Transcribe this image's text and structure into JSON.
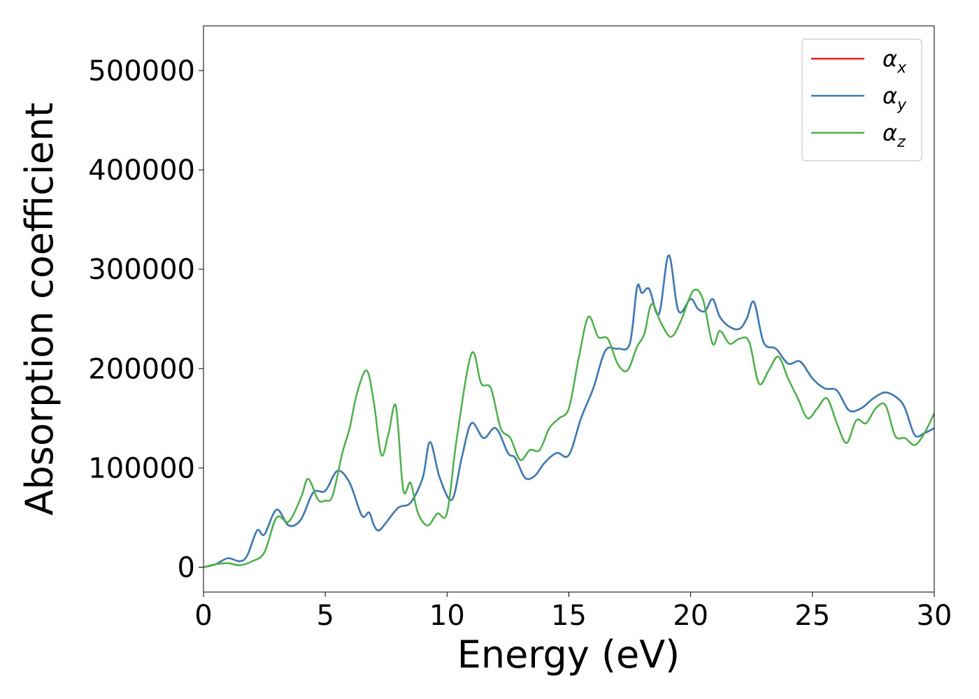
{
  "chart_data": {
    "type": "line",
    "xlabel": "Energy (eV)",
    "ylabel": "Absorption coefficient",
    "xlim": [
      0,
      30
    ],
    "ylim": [
      -25000,
      545000
    ],
    "x_ticks": [
      0,
      5,
      10,
      15,
      20,
      25,
      30
    ],
    "y_ticks": [
      0,
      100000,
      200000,
      300000,
      400000,
      500000
    ],
    "legend_position": "top-right",
    "series": [
      {
        "name": "α_x",
        "label_base": "α",
        "label_sub": "x",
        "color": "#e41a1c",
        "x": [
          0,
          0.5,
          1.0,
          1.5,
          1.8,
          2.2,
          2.5,
          3.0,
          3.5,
          4.0,
          4.5,
          5.0,
          5.5,
          6.0,
          6.5,
          6.8,
          7.0,
          7.2,
          7.5,
          8.0,
          8.5,
          9.0,
          9.3,
          9.7,
          10.2,
          10.6,
          11.0,
          11.5,
          12.0,
          12.5,
          12.8,
          13.2,
          13.6,
          14.0,
          14.5,
          15.0,
          15.5,
          16.0,
          16.5,
          17.0,
          17.5,
          17.8,
          18.0,
          18.3,
          18.7,
          19.1,
          19.5,
          20.0,
          20.3,
          20.6,
          20.9,
          21.2,
          21.6,
          22.0,
          22.3,
          22.6,
          23.0,
          23.5,
          24.0,
          24.5,
          25.0,
          25.5,
          26.0,
          26.5,
          27.0,
          27.5,
          28.0,
          28.5,
          28.8,
          29.2,
          29.6,
          30.0
        ],
        "values": [
          0,
          3000,
          9000,
          6000,
          12000,
          37000,
          33000,
          58000,
          42000,
          48000,
          75000,
          77000,
          97000,
          85000,
          52000,
          55000,
          42000,
          37000,
          45000,
          60000,
          65000,
          90000,
          126000,
          90000,
          68000,
          110000,
          145000,
          130000,
          140000,
          115000,
          110000,
          90000,
          92000,
          105000,
          115000,
          113000,
          150000,
          180000,
          218000,
          220000,
          225000,
          282000,
          276000,
          280000,
          255000,
          314000,
          258000,
          270000,
          260000,
          258000,
          270000,
          252000,
          242000,
          240000,
          250000,
          267000,
          226000,
          220000,
          205000,
          207000,
          190000,
          180000,
          178000,
          158000,
          160000,
          170000,
          176000,
          170000,
          160000,
          133000,
          135000,
          140000
        ]
      },
      {
        "name": "α_y",
        "label_base": "α",
        "label_sub": "y",
        "color": "#377eb8",
        "x": [
          0,
          0.5,
          1.0,
          1.5,
          1.8,
          2.2,
          2.5,
          3.0,
          3.5,
          4.0,
          4.5,
          5.0,
          5.5,
          6.0,
          6.5,
          6.8,
          7.0,
          7.2,
          7.5,
          8.0,
          8.5,
          9.0,
          9.3,
          9.7,
          10.2,
          10.6,
          11.0,
          11.5,
          12.0,
          12.5,
          12.8,
          13.2,
          13.6,
          14.0,
          14.5,
          15.0,
          15.5,
          16.0,
          16.5,
          17.0,
          17.5,
          17.8,
          18.0,
          18.3,
          18.7,
          19.1,
          19.5,
          20.0,
          20.3,
          20.6,
          20.9,
          21.2,
          21.6,
          22.0,
          22.3,
          22.6,
          23.0,
          23.5,
          24.0,
          24.5,
          25.0,
          25.5,
          26.0,
          26.5,
          27.0,
          27.5,
          28.0,
          28.5,
          28.8,
          29.2,
          29.6,
          30.0
        ],
        "values": [
          0,
          3000,
          9000,
          6000,
          12000,
          37000,
          33000,
          58000,
          42000,
          48000,
          75000,
          77000,
          97000,
          85000,
          52000,
          55000,
          42000,
          37000,
          45000,
          60000,
          65000,
          90000,
          126000,
          90000,
          68000,
          110000,
          145000,
          130000,
          140000,
          115000,
          110000,
          90000,
          92000,
          105000,
          115000,
          113000,
          150000,
          180000,
          218000,
          220000,
          225000,
          282000,
          276000,
          280000,
          255000,
          314000,
          258000,
          270000,
          260000,
          258000,
          270000,
          252000,
          242000,
          240000,
          250000,
          267000,
          226000,
          220000,
          205000,
          207000,
          190000,
          180000,
          178000,
          158000,
          160000,
          170000,
          176000,
          170000,
          160000,
          133000,
          135000,
          140000
        ]
      },
      {
        "name": "α_z",
        "label_base": "α",
        "label_sub": "z",
        "color": "#4daf4a",
        "x": [
          0,
          0.5,
          1.0,
          1.5,
          2.0,
          2.5,
          3.0,
          3.5,
          4.0,
          4.3,
          4.7,
          5.0,
          5.3,
          5.7,
          6.0,
          6.3,
          6.7,
          7.0,
          7.3,
          7.6,
          7.9,
          8.2,
          8.5,
          8.8,
          9.2,
          9.6,
          10.0,
          10.4,
          11.0,
          11.4,
          11.8,
          12.2,
          12.6,
          13.0,
          13.4,
          13.8,
          14.2,
          14.6,
          15.0,
          15.4,
          15.8,
          16.2,
          16.6,
          17.0,
          17.4,
          17.8,
          18.1,
          18.4,
          18.8,
          19.2,
          19.6,
          20.1,
          20.5,
          20.9,
          21.2,
          21.6,
          22.0,
          22.4,
          22.8,
          23.2,
          23.6,
          24.0,
          24.4,
          24.8,
          25.2,
          25.6,
          26.0,
          26.4,
          26.8,
          27.2,
          27.6,
          28.0,
          28.4,
          28.8,
          29.2,
          29.6,
          30.0
        ],
        "values": [
          0,
          3000,
          4000,
          2000,
          6000,
          15000,
          50000,
          46000,
          70000,
          89000,
          68000,
          67000,
          72000,
          115000,
          140000,
          175000,
          198000,
          165000,
          113000,
          135000,
          162000,
          78000,
          85000,
          55000,
          42000,
          54000,
          55000,
          130000,
          215000,
          185000,
          180000,
          140000,
          130000,
          108000,
          118000,
          118000,
          140000,
          150000,
          160000,
          210000,
          252000,
          232000,
          230000,
          205000,
          198000,
          222000,
          235000,
          265000,
          245000,
          232000,
          248000,
          278000,
          270000,
          225000,
          238000,
          225000,
          230000,
          227000,
          185000,
          198000,
          212000,
          190000,
          170000,
          150000,
          160000,
          170000,
          145000,
          125000,
          148000,
          145000,
          160000,
          163000,
          132000,
          130000,
          123000,
          135000,
          155000
        ]
      }
    ]
  }
}
